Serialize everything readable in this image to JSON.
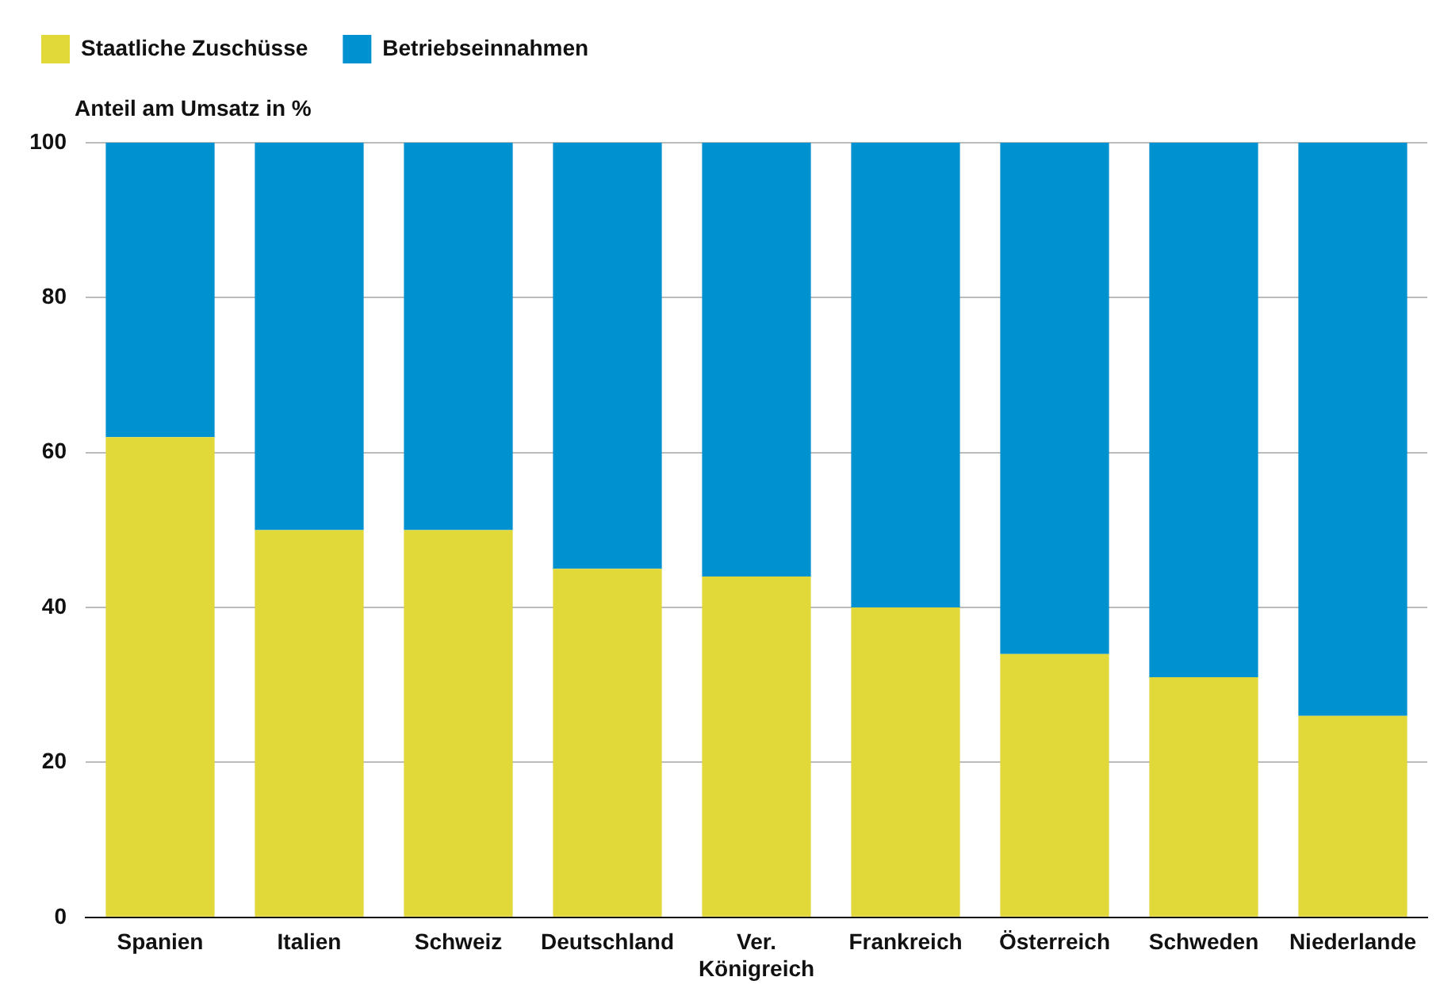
{
  "chart_data": {
    "type": "bar",
    "stacked": true,
    "ylabel": "Anteil am Umsatz in %",
    "categories": [
      "Spanien",
      "Italien",
      "Schweiz",
      "Deutschland",
      "Ver. Königreich",
      "Frankreich",
      "Österreich",
      "Schweden",
      "Niederlande"
    ],
    "series": [
      {
        "name": "Staatliche Zuschüsse",
        "color": "#e1d839",
        "values": [
          62,
          50,
          50,
          45,
          44,
          40,
          34,
          31,
          26
        ]
      },
      {
        "name": "Betriebseinnahmen",
        "color": "#0091d1",
        "values": [
          38,
          50,
          50,
          55,
          56,
          60,
          66,
          69,
          74
        ]
      }
    ],
    "ylim": [
      0,
      100
    ],
    "yticks": [
      0,
      20,
      40,
      60,
      80,
      100
    ],
    "grid": "y",
    "legend": "top left"
  }
}
